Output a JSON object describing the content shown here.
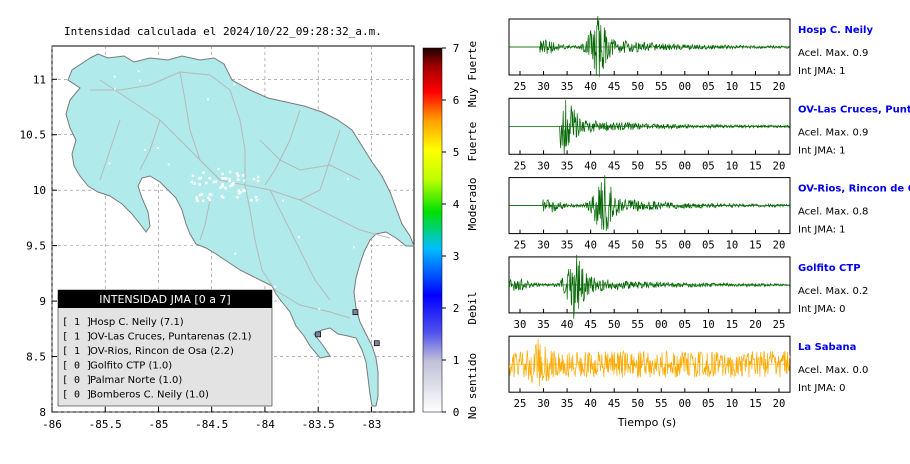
{
  "title": "Intensidad calculada el 2024/10/22_09:28:32_a.m.",
  "colors": {
    "land": "#b0eaea",
    "coast": "#7a7a7a",
    "roads": "#a8a8a8",
    "waveform": "#006600",
    "waveform_noise": "#ffaa00",
    "station_label": "#0000ee"
  },
  "map": {
    "xlim": [
      -86,
      -82.6
    ],
    "ylim": [
      8,
      11.3
    ],
    "x_ticks": [
      "-86",
      "-85.5",
      "-85",
      "-84.5",
      "-84",
      "-83.5",
      "-83"
    ],
    "y_ticks": [
      "8",
      "8.5",
      "9",
      "9.5",
      "10",
      "10.5",
      "11"
    ],
    "grid": true,
    "station_markers": [
      {
        "lon": -83.5,
        "lat": 8.7
      },
      {
        "lon": -83.15,
        "lat": 8.9
      },
      {
        "lon": -82.95,
        "lat": 8.62
      }
    ]
  },
  "legend": {
    "title": "INTENSIDAD JMA [0 a 7]",
    "entries": [
      {
        "code": "[ 1 ]",
        "label": "Hosp C. Neily (7.1)"
      },
      {
        "code": "[ 1 ]",
        "label": "OV-Las Cruces, Puntarenas (2.1)"
      },
      {
        "code": "[ 1 ]",
        "label": "OV-Rios, Rincon de Osa (2.2)"
      },
      {
        "code": "[ 0 ]",
        "label": "Golfito CTP (1.0)"
      },
      {
        "code": "[ 0 ]",
        "label": "Palmar Norte (1.0)"
      },
      {
        "code": "[ 0 ]",
        "label": "Bomberos C. Neily (1.0)"
      }
    ]
  },
  "colorbar": {
    "ticks": [
      "0",
      "1",
      "2",
      "3",
      "4",
      "5",
      "6",
      "7"
    ],
    "labels": [
      {
        "text": "No sentido",
        "level": 0.5
      },
      {
        "text": "Debil",
        "level": 2
      },
      {
        "text": "Moderado",
        "level": 4
      },
      {
        "text": "Fuerte",
        "level": 5.2
      },
      {
        "text": "Muy Fuerte",
        "level": 6.5
      }
    ]
  },
  "waveforms": {
    "xlabel": "Tiempo (s)",
    "panels": [
      {
        "station": "Hosp C. Neily",
        "accel_label": "Acel. Max. 0.9",
        "int_label": "Int JMA: 1",
        "ticks": [
          "25",
          "30",
          "35",
          "40",
          "45",
          "50",
          "55",
          "00",
          "05",
          "10",
          "15",
          "20"
        ],
        "onset": 0.11,
        "peak": 0.31,
        "amp": 0.9,
        "color": "waveform"
      },
      {
        "station": "OV-Las Cruces, Puntar",
        "accel_label": "Acel. Max. 0.9",
        "int_label": "Int JMA: 1",
        "ticks": [
          "25",
          "30",
          "35",
          "40",
          "45",
          "50",
          "55",
          "00",
          "05",
          "10",
          "15",
          "20"
        ],
        "onset": 0.18,
        "peak": 0.2,
        "amp": 0.9,
        "color": "waveform"
      },
      {
        "station": "OV-Rios, Rincon de Os",
        "accel_label": "Acel. Max. 0.8",
        "int_label": "Int JMA: 1",
        "ticks": [
          "25",
          "30",
          "35",
          "40",
          "45",
          "50",
          "55",
          "00",
          "05",
          "10",
          "15",
          "20"
        ],
        "onset": 0.12,
        "peak": 0.33,
        "amp": 0.8,
        "color": "waveform"
      },
      {
        "station": "Golfito CTP",
        "accel_label": "Acel. Max. 0.2",
        "int_label": "Int JMA: 0",
        "ticks": [
          "30",
          "35",
          "40",
          "45",
          "50",
          "55",
          "00",
          "05",
          "10",
          "15",
          "20",
          "25"
        ],
        "onset": 0.0,
        "peak": 0.23,
        "amp": 0.2,
        "color": "waveform"
      },
      {
        "station": "La Sabana",
        "accel_label": "Acel. Max. 0.0",
        "int_label": "Int JMA: 0",
        "ticks": [
          "25",
          "30",
          "35",
          "40",
          "45",
          "50",
          "55",
          "00",
          "05",
          "10",
          "15",
          "20"
        ],
        "onset": 0.0,
        "peak": 0.11,
        "amp": 0.05,
        "color": "waveform_noise"
      }
    ]
  }
}
